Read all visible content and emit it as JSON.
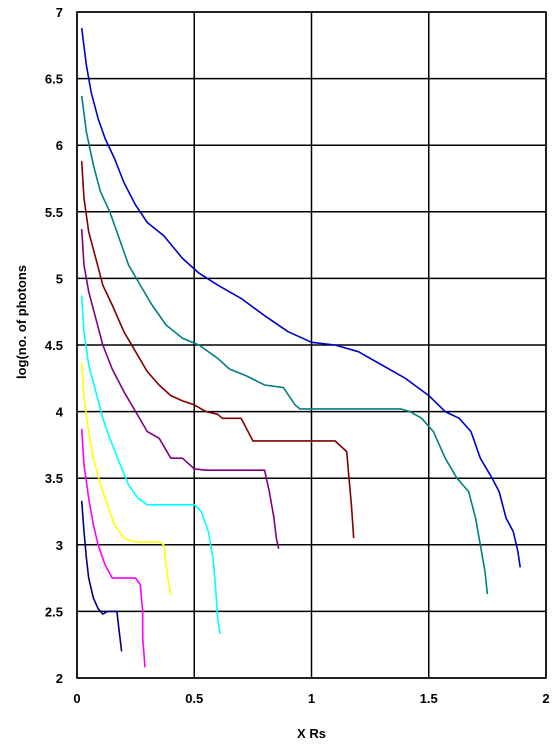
{
  "chart_data": {
    "type": "line",
    "title": "",
    "xlabel": "X Rs",
    "ylabel": "log(no. of photons",
    "xlim": [
      0,
      2
    ],
    "ylim": [
      2,
      7
    ],
    "x_ticks": [
      "0",
      "0.5",
      "1",
      "1.5",
      "2"
    ],
    "y_ticks": [
      "2",
      "2.5",
      "3",
      "3.5",
      "4",
      "4.5",
      "5",
      "5.5",
      "6",
      "6.5",
      "7"
    ],
    "grid": true,
    "legend": "none",
    "series": [
      {
        "color": "#0000cc",
        "x": [
          0.02,
          0.04,
          0.06,
          0.09,
          0.12,
          0.16,
          0.2,
          0.25,
          0.3,
          0.37,
          0.45,
          0.52,
          0.6,
          0.7,
          0.8,
          0.9,
          1.0,
          1.1,
          1.2,
          1.3,
          1.4,
          1.5,
          1.57,
          1.63,
          1.68,
          1.72,
          1.77,
          1.8,
          1.83,
          1.86,
          1.88,
          1.89
        ],
        "y": [
          6.88,
          6.6,
          6.4,
          6.2,
          6.05,
          5.9,
          5.72,
          5.55,
          5.42,
          5.32,
          5.15,
          5.04,
          4.95,
          4.85,
          4.72,
          4.6,
          4.52,
          4.5,
          4.45,
          4.35,
          4.25,
          4.12,
          4.0,
          3.95,
          3.85,
          3.65,
          3.5,
          3.4,
          3.2,
          3.1,
          2.95,
          2.83
        ]
      },
      {
        "color": "#008080",
        "x": [
          0.02,
          0.04,
          0.07,
          0.1,
          0.14,
          0.18,
          0.22,
          0.27,
          0.32,
          0.38,
          0.45,
          0.52,
          0.6,
          0.65,
          0.72,
          0.8,
          0.88,
          0.93,
          0.95,
          1.0,
          1.1,
          1.2,
          1.3,
          1.38,
          1.42,
          1.47,
          1.52,
          1.57,
          1.62,
          1.67,
          1.7,
          1.72,
          1.74,
          1.75
        ],
        "y": [
          6.37,
          6.1,
          5.85,
          5.65,
          5.5,
          5.3,
          5.1,
          4.95,
          4.8,
          4.65,
          4.55,
          4.5,
          4.4,
          4.32,
          4.27,
          4.2,
          4.18,
          4.05,
          4.02,
          4.02,
          4.02,
          4.02,
          4.02,
          4.02,
          4.0,
          3.95,
          3.85,
          3.65,
          3.5,
          3.4,
          3.2,
          3.0,
          2.8,
          2.63
        ]
      },
      {
        "color": "#800000",
        "x": [
          0.02,
          0.03,
          0.05,
          0.08,
          0.11,
          0.15,
          0.2,
          0.25,
          0.3,
          0.35,
          0.4,
          0.45,
          0.5,
          0.55,
          0.6,
          0.62,
          0.7,
          0.75,
          0.8,
          0.9,
          1.0,
          1.1,
          1.15,
          1.16,
          1.17,
          1.18
        ],
        "y": [
          5.88,
          5.6,
          5.35,
          5.15,
          4.95,
          4.8,
          4.6,
          4.45,
          4.3,
          4.2,
          4.12,
          4.08,
          4.05,
          4.0,
          3.98,
          3.95,
          3.95,
          3.78,
          3.78,
          3.78,
          3.78,
          3.78,
          3.7,
          3.5,
          3.3,
          3.05
        ]
      },
      {
        "color": "#800080",
        "x": [
          0.02,
          0.03,
          0.05,
          0.08,
          0.11,
          0.15,
          0.2,
          0.25,
          0.3,
          0.35,
          0.4,
          0.45,
          0.5,
          0.55,
          0.6,
          0.7,
          0.8,
          0.82,
          0.84,
          0.85,
          0.86
        ],
        "y": [
          5.37,
          5.1,
          4.9,
          4.7,
          4.5,
          4.32,
          4.15,
          4.0,
          3.85,
          3.8,
          3.65,
          3.65,
          3.57,
          3.56,
          3.56,
          3.56,
          3.56,
          3.4,
          3.2,
          3.05,
          2.97
        ]
      },
      {
        "color": "#00ffff",
        "x": [
          0.02,
          0.03,
          0.05,
          0.08,
          0.11,
          0.14,
          0.18,
          0.22,
          0.26,
          0.3,
          0.35,
          0.4,
          0.45,
          0.5,
          0.53,
          0.56,
          0.58,
          0.59,
          0.6,
          0.61
        ],
        "y": [
          4.87,
          4.6,
          4.35,
          4.15,
          3.95,
          3.8,
          3.62,
          3.45,
          3.35,
          3.3,
          3.3,
          3.3,
          3.3,
          3.3,
          3.25,
          3.1,
          2.9,
          2.7,
          2.45,
          2.33
        ]
      },
      {
        "color": "#ffff00",
        "x": [
          0.02,
          0.03,
          0.05,
          0.07,
          0.1,
          0.13,
          0.16,
          0.2,
          0.25,
          0.3,
          0.35,
          0.37,
          0.38,
          0.39,
          0.4
        ],
        "y": [
          4.37,
          4.1,
          3.85,
          3.65,
          3.45,
          3.3,
          3.15,
          3.05,
          3.02,
          3.02,
          3.02,
          3.0,
          2.85,
          2.72,
          2.62
        ]
      },
      {
        "color": "#ff00ff",
        "x": [
          0.02,
          0.03,
          0.05,
          0.07,
          0.09,
          0.12,
          0.15,
          0.2,
          0.23,
          0.25,
          0.27,
          0.28,
          0.28,
          0.29
        ],
        "y": [
          3.87,
          3.6,
          3.35,
          3.15,
          3.0,
          2.85,
          2.75,
          2.75,
          2.75,
          2.75,
          2.7,
          2.5,
          2.3,
          2.08
        ]
      },
      {
        "color": "#000080",
        "x": [
          0.02,
          0.03,
          0.04,
          0.05,
          0.07,
          0.09,
          0.11,
          0.13,
          0.15,
          0.17,
          0.18,
          0.19
        ],
        "y": [
          3.33,
          3.1,
          2.9,
          2.75,
          2.6,
          2.52,
          2.48,
          2.5,
          2.5,
          2.5,
          2.35,
          2.2
        ]
      }
    ]
  }
}
